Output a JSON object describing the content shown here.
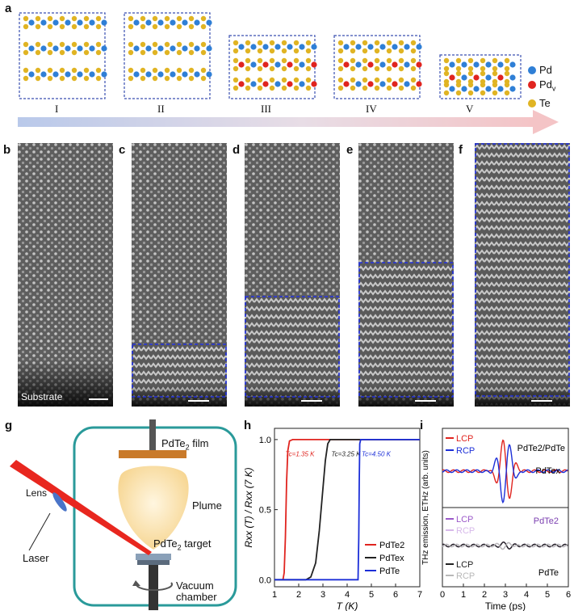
{
  "panels": {
    "a": "a",
    "b": "b",
    "c": "c",
    "d": "d",
    "e": "e",
    "f": "f",
    "g": "g",
    "h": "h",
    "i": "i"
  },
  "panel_a": {
    "stages": [
      "I",
      "II",
      "III",
      "IV",
      "V"
    ],
    "legend": [
      {
        "label": "Pd",
        "sub": "",
        "color": "#2f7fd6"
      },
      {
        "label": "Pd",
        "sub": "v",
        "color": "#e0241f"
      },
      {
        "label": "Te",
        "sub": "",
        "color": "#e0b423"
      }
    ]
  },
  "stem": {
    "substrate_label": "Substrate"
  },
  "panel_g": {
    "film": "PdTe",
    "film_sub": "2",
    "film_suffix": " film",
    "plume": "Plume",
    "lens": "Lens",
    "laser": "Laser",
    "target": "PdTe",
    "target_sub": "2",
    "target_suffix": " target",
    "chamber_line1": "Vacuum",
    "chamber_line2": "chamber"
  },
  "chart_data": [
    {
      "type": "line",
      "id": "h",
      "xlabel": "T (K)",
      "ylabel": "Rxx (T) / Rxx (7 K)",
      "xlim": [
        1,
        7
      ],
      "ylim": [
        -0.05,
        1.08
      ],
      "xticks": [
        1,
        2,
        3,
        4,
        5,
        6,
        7
      ],
      "yticks": [
        0.0,
        0.5,
        1.0
      ],
      "series": [
        {
          "name": "PdTe2",
          "color": "#e0241f",
          "tc": "1.35 K",
          "tc_label": "Tc=1.35 K",
          "points": [
            [
              1.35,
              0.0
            ],
            [
              1.4,
              0.05
            ],
            [
              1.45,
              0.3
            ],
            [
              1.5,
              0.7
            ],
            [
              1.55,
              0.92
            ],
            [
              1.62,
              0.99
            ],
            [
              1.75,
              1.0
            ],
            [
              7,
              1.0
            ]
          ]
        },
        {
          "name": "PdTex",
          "color": "#222222",
          "tc": "3.25 K",
          "tc_label": "Tc=3.25 K",
          "points": [
            [
              1.0,
              0.0
            ],
            [
              2.3,
              0.0
            ],
            [
              2.5,
              0.02
            ],
            [
              2.7,
              0.12
            ],
            [
              2.85,
              0.35
            ],
            [
              3.0,
              0.65
            ],
            [
              3.1,
              0.85
            ],
            [
              3.2,
              0.97
            ],
            [
              3.3,
              1.0
            ],
            [
              7,
              1.0
            ]
          ]
        },
        {
          "name": "PdTe",
          "color": "#1c2fd8",
          "tc": "4.50 K",
          "tc_label": "Tc=4.50 K",
          "points": [
            [
              1.0,
              0.0
            ],
            [
              4.45,
              0.0
            ],
            [
              4.48,
              0.3
            ],
            [
              4.5,
              0.7
            ],
            [
              4.52,
              0.97
            ],
            [
              4.56,
              1.0
            ],
            [
              7,
              1.0
            ]
          ]
        }
      ]
    },
    {
      "type": "line",
      "id": "i",
      "xlabel": "Time (ps)",
      "ylabel": "THz emission, ETHz (arb. units)",
      "xlim": [
        0,
        6
      ],
      "xticks": [
        0,
        1,
        2,
        3,
        4,
        5,
        6
      ],
      "upper": {
        "annot1": "PdTe2/PdTe",
        "annot2": "PdTex",
        "series": [
          {
            "name": "LCP",
            "color": "#e0241f"
          },
          {
            "name": "RCP",
            "color": "#1c2fd8"
          }
        ]
      },
      "lower": {
        "annot1": "PdTe2",
        "annot2": "PdTe",
        "series": [
          {
            "name": "LCP",
            "color": "#9b59c9"
          },
          {
            "name": "RCP",
            "color": "#d7b9ea"
          },
          {
            "name": "LCP",
            "color": "#222222"
          },
          {
            "name": "RCP",
            "color": "#b8b8b8"
          }
        ]
      }
    }
  ]
}
